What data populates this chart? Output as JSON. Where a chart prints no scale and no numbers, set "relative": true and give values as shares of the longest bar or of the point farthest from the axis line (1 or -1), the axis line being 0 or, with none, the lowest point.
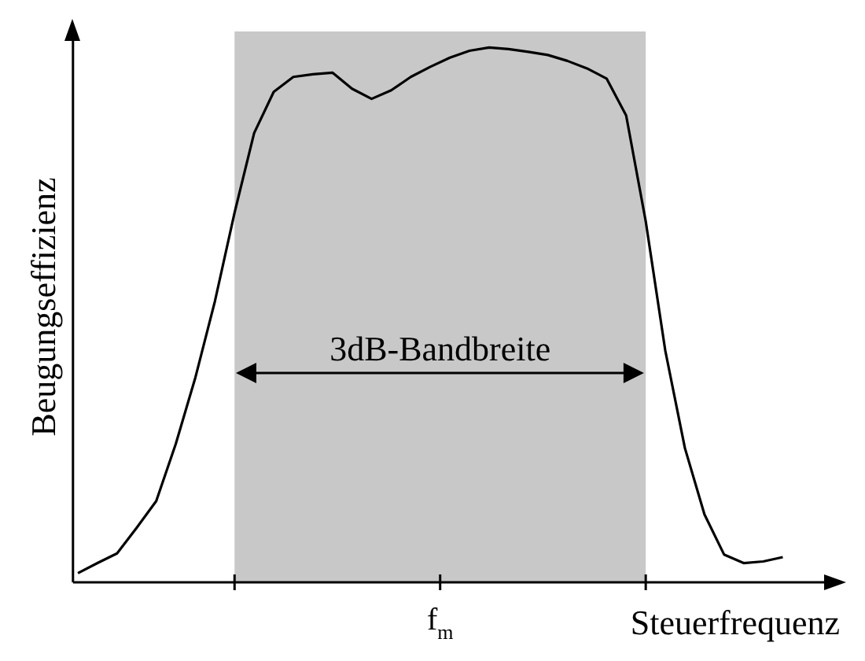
{
  "chart_data": {
    "type": "line",
    "relative": true,
    "xlabel": "Steuerfrequenz",
    "ylabel": "Beugungseffizienz",
    "annotations": [
      "3dB-Bandbreite",
      "f$_{m}$"
    ],
    "categories": [
      null,
      null,
      null,
      null,
      null,
      null,
      null,
      null,
      null,
      null,
      null,
      null,
      null,
      null,
      null,
      null,
      null,
      null,
      null,
      null,
      null,
      null,
      null,
      null,
      null,
      null,
      null,
      null,
      null,
      null,
      null,
      null,
      null,
      null,
      null,
      null,
      null
    ],
    "series": [
      {
        "color": "#000000",
        "values": [
          0.017,
          0.036,
          0.054,
          0.102,
          0.152,
          0.259,
          0.383,
          0.526,
          0.691,
          0.84,
          0.917,
          0.945,
          0.95,
          0.953,
          0.923,
          0.904,
          0.92,
          0.945,
          0.964,
          0.981,
          0.994,
          1.0,
          0.997,
          0.992,
          0.986,
          0.975,
          0.961,
          0.942,
          0.873,
          0.675,
          0.433,
          0.251,
          0.127,
          0.052,
          0.036,
          0.039,
          0.047
        ]
      }
    ],
    "grid": false,
    "legend": false,
    "marker": "none",
    "line_style": "solid"
  }
}
